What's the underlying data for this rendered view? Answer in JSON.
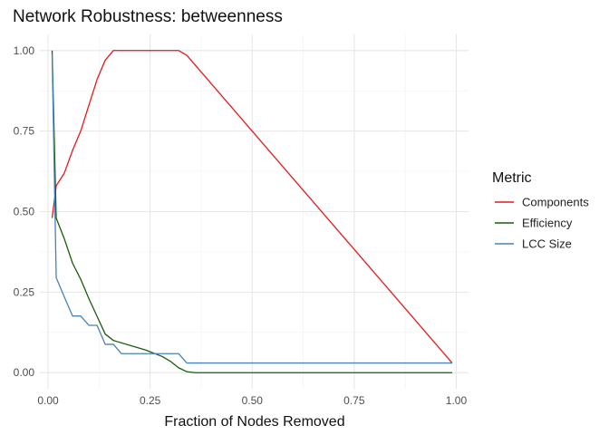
{
  "chart_data": {
    "type": "line",
    "title": "Network Robustness: betweenness",
    "xlabel": "Fraction of Nodes Removed",
    "ylabel": "",
    "xlim": [
      -0.02,
      1.03
    ],
    "ylim": [
      -0.05,
      1.05
    ],
    "x_ticks": [
      0.0,
      0.25,
      0.5,
      0.75,
      1.0
    ],
    "x_tick_labels": [
      "0.00",
      "0.25",
      "0.50",
      "0.75",
      "1.00"
    ],
    "y_ticks": [
      0.0,
      0.25,
      0.5,
      0.75,
      1.0
    ],
    "y_tick_labels": [
      "0.00",
      "0.25",
      "0.50",
      "0.75",
      "1.00"
    ],
    "grid": true,
    "legend": {
      "title": "Metric",
      "placement": "right"
    },
    "series": [
      {
        "name": "Components",
        "color": "#e41a1c",
        "points": [
          [
            0.01,
            0.48
          ],
          [
            0.02,
            0.58
          ],
          [
            0.04,
            0.62
          ],
          [
            0.06,
            0.69
          ],
          [
            0.08,
            0.75
          ],
          [
            0.1,
            0.83
          ],
          [
            0.12,
            0.91
          ],
          [
            0.14,
            0.97
          ],
          [
            0.16,
            1.0
          ],
          [
            0.2,
            1.0
          ],
          [
            0.25,
            1.0
          ],
          [
            0.3,
            1.0
          ],
          [
            0.32,
            1.0
          ],
          [
            0.34,
            0.985
          ],
          [
            0.99,
            0.03
          ]
        ]
      },
      {
        "name": "Efficiency",
        "color": "#1a5c0a",
        "points": [
          [
            0.01,
            1.0
          ],
          [
            0.02,
            0.48
          ],
          [
            0.04,
            0.415
          ],
          [
            0.06,
            0.34
          ],
          [
            0.08,
            0.29
          ],
          [
            0.1,
            0.23
          ],
          [
            0.12,
            0.175
          ],
          [
            0.14,
            0.12
          ],
          [
            0.16,
            0.1
          ],
          [
            0.2,
            0.085
          ],
          [
            0.24,
            0.07
          ],
          [
            0.28,
            0.05
          ],
          [
            0.3,
            0.035
          ],
          [
            0.32,
            0.015
          ],
          [
            0.34,
            0.003
          ],
          [
            0.36,
            0.0
          ],
          [
            0.5,
            0.0
          ],
          [
            0.75,
            0.0
          ],
          [
            0.99,
            0.0
          ]
        ]
      },
      {
        "name": "LCC Size",
        "color": "#4682b4",
        "points": [
          [
            0.01,
            0.99
          ],
          [
            0.02,
            0.295
          ],
          [
            0.04,
            0.235
          ],
          [
            0.06,
            0.176
          ],
          [
            0.08,
            0.176
          ],
          [
            0.1,
            0.147
          ],
          [
            0.12,
            0.147
          ],
          [
            0.14,
            0.088
          ],
          [
            0.16,
            0.088
          ],
          [
            0.18,
            0.059
          ],
          [
            0.2,
            0.059
          ],
          [
            0.3,
            0.059
          ],
          [
            0.32,
            0.059
          ],
          [
            0.34,
            0.03
          ],
          [
            0.5,
            0.03
          ],
          [
            0.75,
            0.03
          ],
          [
            0.99,
            0.03
          ]
        ]
      }
    ]
  }
}
